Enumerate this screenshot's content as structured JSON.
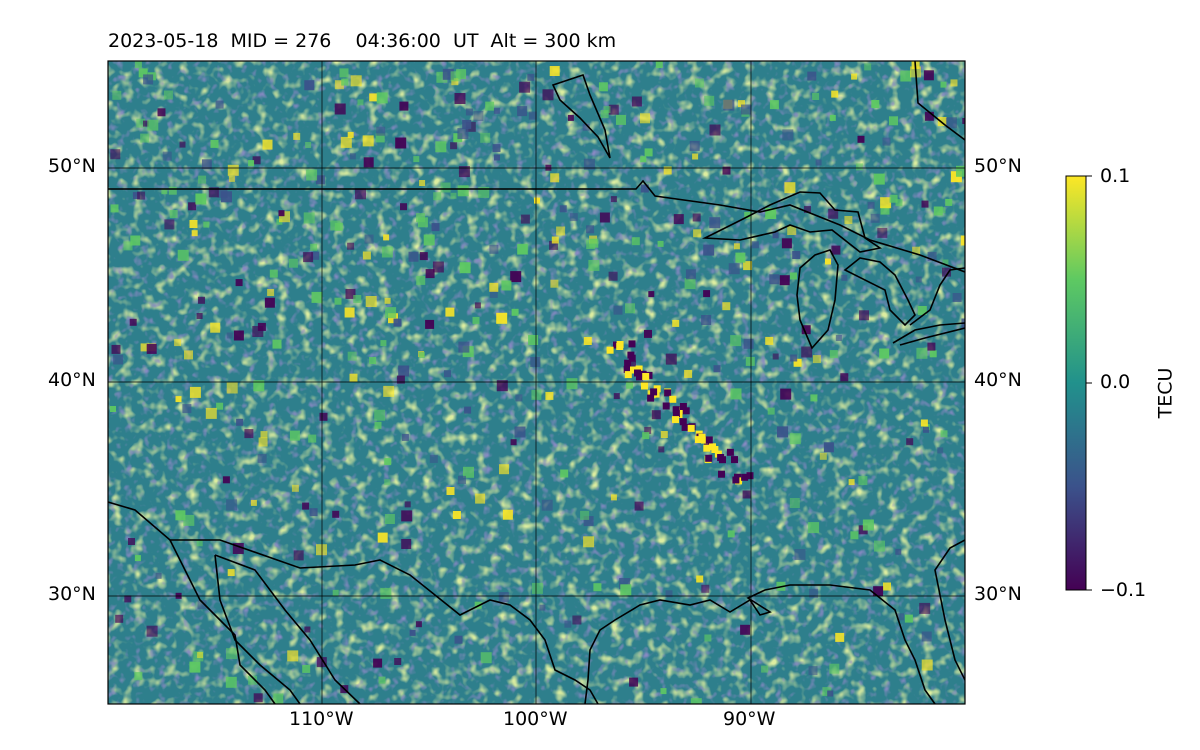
{
  "title": "2023-05-18  MID = 276    04:36:00  UT  Alt = 300 km",
  "map": {
    "lon_range": [
      -120,
      -80
    ],
    "lat_range": [
      25,
      55
    ],
    "lat_ticks": [
      {
        "value": 30,
        "label": "30°N"
      },
      {
        "value": 40,
        "label": "40°N"
      },
      {
        "value": 50,
        "label": "50°N"
      }
    ],
    "lon_ticks": [
      {
        "value": -110,
        "label": "110°W"
      },
      {
        "value": -100,
        "label": "100°W"
      },
      {
        "value": -90,
        "label": "90°W"
      }
    ],
    "grid": true,
    "coastlines": true,
    "borders": true,
    "field": "differential TEC residuals"
  },
  "colorbar": {
    "label": "TECU",
    "colormap": "viridis",
    "vmin": -0.1,
    "vmax": 0.1,
    "ticks": [
      {
        "value": 0.1,
        "label": "0.1"
      },
      {
        "value": 0.0,
        "label": "0.0"
      },
      {
        "value": -0.1,
        "label": "−0.1"
      }
    ],
    "colors": [
      "#440154",
      "#3b528b",
      "#21918c",
      "#5ec962",
      "#fde725"
    ]
  }
}
